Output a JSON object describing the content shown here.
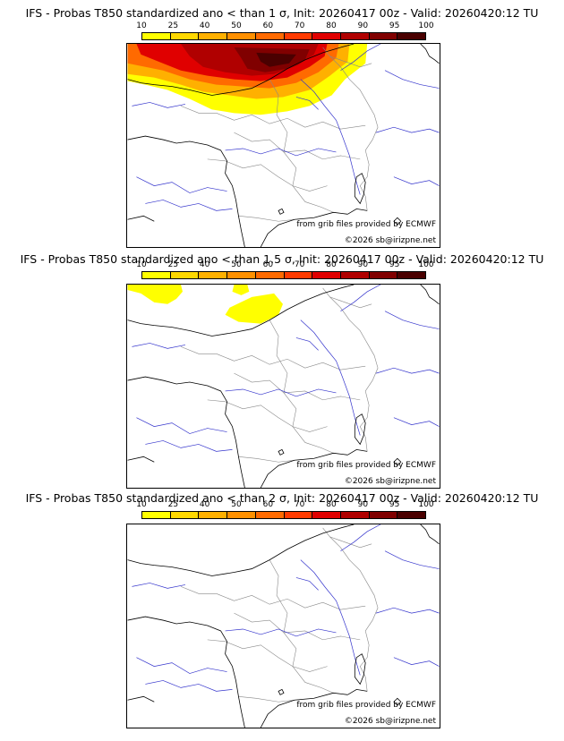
{
  "scale": {
    "ticks": [
      "10",
      "25",
      "40",
      "50",
      "60",
      "70",
      "80",
      "90",
      "95",
      "100"
    ],
    "colors": [
      "#ffff00",
      "#ffd800",
      "#ffb000",
      "#ff9000",
      "#ff6a00",
      "#ff3a00",
      "#e00000",
      "#b00000",
      "#800000",
      "#4a0000"
    ]
  },
  "colors": {
    "rivers": "#3333cc",
    "borders": "#888888",
    "coast": "#000000"
  },
  "panels": [
    {
      "title": "IFS - Probas T850  standardized ano < than 1 σ, Init: 20260417 00z - Valid: 20260420:12 TU",
      "source": "from grib files provided by ECMWF",
      "copyright": "©2026 sb@irizpne.net",
      "probability_field": "strong"
    },
    {
      "title": "IFS - Probas T850  standardized ano < than 1.5 σ, Init: 20260417 00z - Valid: 20260420:12 TU",
      "source": "from grib files provided by ECMWF",
      "copyright": "©2026 sb@irizpne.net",
      "probability_field": "weak"
    },
    {
      "title": "IFS - Probas T850  standardized ano < than 2 σ, Init: 20260417 00z - Valid: 20260420:12 TU",
      "source": "from grib files provided by ECMWF",
      "copyright": "©2026 sb@irizpne.net",
      "probability_field": "none"
    }
  ]
}
